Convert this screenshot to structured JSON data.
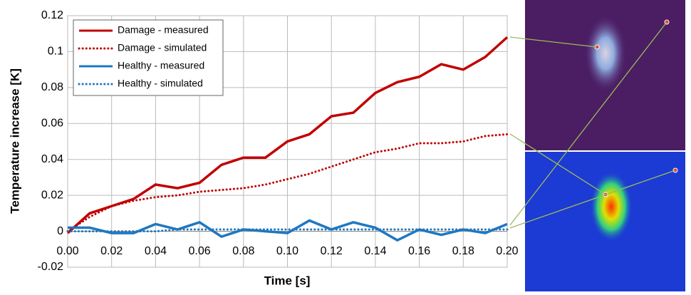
{
  "chart_data": {
    "type": "line",
    "xlabel": "Time [s]",
    "ylabel": "Temperature increase [K]",
    "x": [
      0,
      0.01,
      0.02,
      0.03,
      0.04,
      0.05,
      0.06,
      0.07,
      0.08,
      0.09,
      0.1,
      0.11,
      0.12,
      0.13,
      0.14,
      0.15,
      0.16,
      0.17,
      0.18,
      0.19,
      0.2
    ],
    "series": [
      {
        "name": "Damage - measured",
        "color": "#c00000",
        "line_style": "solid",
        "values": [
          -0.001,
          0.01,
          0.014,
          0.018,
          0.026,
          0.024,
          0.027,
          0.037,
          0.041,
          0.041,
          0.05,
          0.054,
          0.064,
          0.066,
          0.077,
          0.083,
          0.086,
          0.093,
          0.09,
          0.097,
          0.108
        ]
      },
      {
        "name": "Damage - simulated",
        "color": "#c00000",
        "line_style": "dotted",
        "values": [
          0,
          0.008,
          0.014,
          0.017,
          0.019,
          0.02,
          0.022,
          0.023,
          0.024,
          0.026,
          0.029,
          0.032,
          0.036,
          0.04,
          0.044,
          0.046,
          0.049,
          0.049,
          0.05,
          0.053,
          0.054
        ]
      },
      {
        "name": "Healthy - measured",
        "color": "#1f77c0",
        "line_style": "solid",
        "values": [
          0.002,
          0.002,
          -0.001,
          -0.001,
          0.004,
          0.001,
          0.005,
          -0.003,
          0.001,
          0,
          -0.001,
          0.006,
          0.001,
          0.005,
          0.002,
          -0.005,
          0.001,
          -0.002,
          0.001,
          -0.001,
          0.004
        ]
      },
      {
        "name": "Healthy - simulated",
        "color": "#1f77c0",
        "line_style": "dotted",
        "values": [
          0,
          0,
          0,
          0,
          0,
          0.001,
          0.001,
          0.001,
          0.001,
          0.001,
          0.001,
          0.001,
          0.001,
          0.001,
          0.001,
          0.001,
          0.001,
          0.001,
          0.001,
          0.001,
          0.001
        ]
      }
    ],
    "xlim": [
      0,
      0.2
    ],
    "xticks": [
      {
        "value": 0,
        "label": "0.00"
      },
      {
        "value": 0.02,
        "label": "0.02"
      },
      {
        "value": 0.04,
        "label": "0.04"
      },
      {
        "value": 0.06,
        "label": "0.06"
      },
      {
        "value": 0.08,
        "label": "0.08"
      },
      {
        "value": 0.1,
        "label": "0.10"
      },
      {
        "value": 0.12,
        "label": "0.12"
      },
      {
        "value": 0.14,
        "label": "0.14"
      },
      {
        "value": 0.16,
        "label": "0.16"
      },
      {
        "value": 0.18,
        "label": "0.18"
      },
      {
        "value": 0.2,
        "label": "0.20"
      }
    ],
    "ylim": [
      -0.02,
      0.12
    ],
    "yticks": [
      -0.02,
      0,
      0.02,
      0.04,
      0.06,
      0.08,
      0.1,
      0.12
    ],
    "grid": true,
    "legend": "top-left"
  }
}
